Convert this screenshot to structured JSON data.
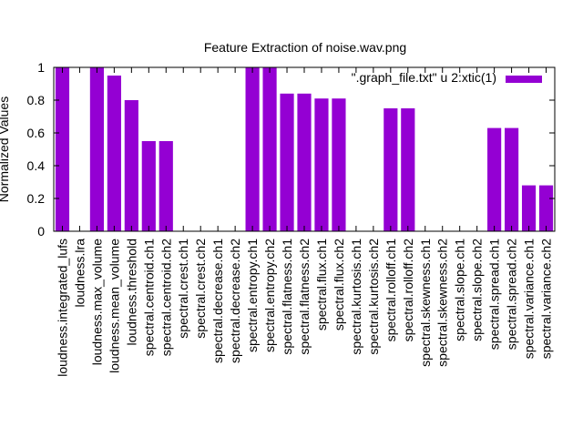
{
  "chart_data": {
    "type": "bar",
    "title": "Feature Extraction of noise.wav.png",
    "ylabel": "Normalized Values",
    "xlabel": "",
    "ylim": [
      0,
      1
    ],
    "yticks": [
      "0",
      "0.2",
      "0.4",
      "0.6",
      "0.8",
      "1"
    ],
    "ytick_values": [
      0,
      0.2,
      0.4,
      0.6,
      0.8,
      1
    ],
    "legend": {
      "label": "\".graph_file.txt\" u 2:xtic(1)",
      "placement": "top-right"
    },
    "bar_color": "#9400d3",
    "grid": false,
    "categories": [
      "loudness.integrated_lufs",
      "loudness.lra",
      "loudness.max_volume",
      "loudness.mean_volume",
      "loudness.threshold",
      "spectral.centroid.ch1",
      "spectral.centroid.ch2",
      "spectral.crest.ch1",
      "spectral.crest.ch2",
      "spectral.decrease.ch1",
      "spectral.decrease.ch2",
      "spectral.entropy.ch1",
      "spectral.entropy.ch2",
      "spectral.flatness.ch1",
      "spectral.flatness.ch2",
      "spectral.flux.ch1",
      "spectral.flux.ch2",
      "spectral.kurtosis.ch1",
      "spectral.kurtosis.ch2",
      "spectral.rolloff.ch1",
      "spectral.rolloff.ch2",
      "spectral.skewness.ch1",
      "spectral.skewness.ch2",
      "spectral.slope.ch1",
      "spectral.slope.ch2",
      "spectral.spread.ch1",
      "spectral.spread.ch2",
      "spectral.variance.ch1",
      "spectral.variance.ch2"
    ],
    "values": [
      1.0,
      0,
      1.0,
      0.95,
      0.8,
      0.55,
      0.55,
      0,
      0,
      0,
      0,
      1.0,
      1.0,
      0.84,
      0.84,
      0.81,
      0.81,
      0,
      0,
      0.75,
      0.75,
      0,
      0,
      0,
      0,
      0.63,
      0.63,
      0.28,
      0.28
    ]
  }
}
